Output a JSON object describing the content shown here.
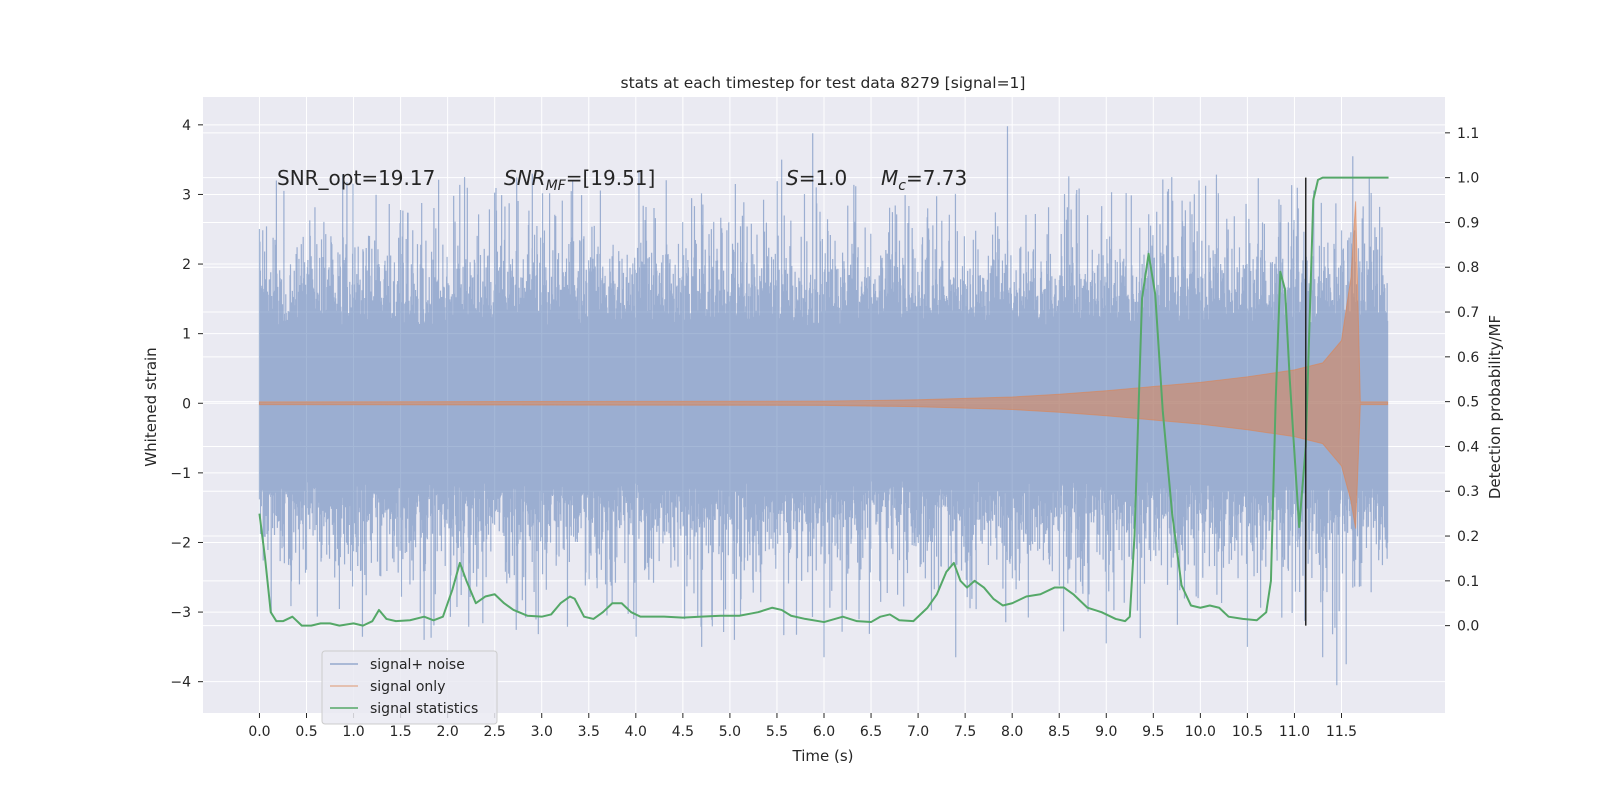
{
  "chart_data": {
    "type": "line",
    "title": "stats at each timestep for test data 8279 [signal=1]",
    "xlabel": "Time (s)",
    "ylabel_left": "Whitened strain",
    "ylabel_right": "Detection probability/MF",
    "xlim": [
      -0.6,
      12.6
    ],
    "ylim_left": [
      -4.45,
      4.4
    ],
    "ylim_right": [
      -0.195,
      1.18
    ],
    "xticks": [
      "0.0",
      "0.5",
      "1.0",
      "1.5",
      "2.0",
      "2.5",
      "3.0",
      "3.5",
      "4.0",
      "4.5",
      "5.0",
      "5.5",
      "6.0",
      "6.5",
      "7.0",
      "7.5",
      "8.0",
      "8.5",
      "9.0",
      "9.5",
      "10.0",
      "10.5",
      "11.0",
      "11.5"
    ],
    "yticks_left": [
      "4",
      "3",
      "2",
      "1",
      "0",
      "−1",
      "−2",
      "−3",
      "−4"
    ],
    "yticks_right": [
      "1.1",
      "1.0",
      "0.9",
      "0.8",
      "0.7",
      "0.6",
      "0.5",
      "0.4",
      "0.3",
      "0.2",
      "0.1",
      "0.0"
    ],
    "grid": true,
    "legend_position": "lower-left",
    "annotations": {
      "snr_opt": "SNR_opt=19.17",
      "snr_mf_name": "SNR",
      "snr_mf_sub": "MF",
      "snr_mf_value": "=[19.51]",
      "s_name": "S",
      "s_value": "=1.0",
      "mc_name": "M",
      "mc_sub": "c",
      "mc_value": "=7.73"
    },
    "vline_x": 11.12,
    "series": [
      {
        "name": "signal+ noise",
        "color": "#4c72b0",
        "x_range": [
          0.0,
          11.99
        ],
        "typical_envelope": [
          -1.9,
          1.9
        ],
        "extreme_range": [
          -4.05,
          3.98
        ]
      },
      {
        "name": "signal only",
        "color": "#dd8452",
        "envelope": {
          "x": [
            0.0,
            6.0,
            7.0,
            8.0,
            8.5,
            9.0,
            9.5,
            10.0,
            10.5,
            11.0,
            11.3,
            11.5,
            11.6,
            11.65,
            11.7,
            11.99
          ],
          "upper": [
            0.02,
            0.03,
            0.05,
            0.09,
            0.13,
            0.18,
            0.24,
            0.3,
            0.38,
            0.48,
            0.58,
            0.9,
            1.8,
            2.9,
            0.02,
            0.02
          ],
          "lower": [
            -0.02,
            -0.03,
            -0.05,
            -0.09,
            -0.13,
            -0.18,
            -0.24,
            -0.3,
            -0.38,
            -0.48,
            -0.58,
            -0.9,
            -1.4,
            -1.8,
            -0.02,
            -0.02
          ]
        }
      },
      {
        "name": "signal statistics",
        "color": "#55a868",
        "x": [
          0.0,
          0.06,
          0.12,
          0.18,
          0.25,
          0.35,
          0.45,
          0.55,
          0.65,
          0.75,
          0.85,
          1.0,
          1.1,
          1.2,
          1.27,
          1.35,
          1.45,
          1.6,
          1.75,
          1.85,
          1.95,
          2.05,
          2.13,
          2.2,
          2.3,
          2.4,
          2.5,
          2.6,
          2.7,
          2.85,
          3.0,
          3.1,
          3.2,
          3.3,
          3.35,
          3.45,
          3.55,
          3.65,
          3.75,
          3.85,
          3.95,
          4.05,
          4.15,
          4.3,
          4.5,
          4.7,
          4.9,
          5.1,
          5.3,
          5.45,
          5.55,
          5.65,
          5.8,
          6.0,
          6.2,
          6.35,
          6.5,
          6.6,
          6.7,
          6.8,
          6.95,
          7.1,
          7.2,
          7.3,
          7.38,
          7.45,
          7.52,
          7.6,
          7.7,
          7.8,
          7.9,
          8.0,
          8.15,
          8.3,
          8.45,
          8.55,
          8.65,
          8.8,
          8.95,
          9.1,
          9.2,
          9.25,
          9.3,
          9.38,
          9.45,
          9.52,
          9.6,
          9.7,
          9.8,
          9.9,
          10.0,
          10.1,
          10.2,
          10.3,
          10.45,
          10.6,
          10.7,
          10.75,
          10.8,
          10.85,
          10.9,
          10.95,
          11.05,
          11.12,
          11.2,
          11.25,
          11.3,
          11.4,
          11.5,
          11.6,
          11.7,
          11.8,
          11.9,
          12.0
        ],
        "y": [
          0.25,
          0.15,
          0.03,
          0.01,
          0.01,
          0.02,
          0.0,
          0.0,
          0.005,
          0.005,
          0.0,
          0.005,
          0.0,
          0.01,
          0.035,
          0.015,
          0.01,
          0.012,
          0.02,
          0.012,
          0.02,
          0.08,
          0.14,
          0.1,
          0.05,
          0.065,
          0.07,
          0.05,
          0.035,
          0.022,
          0.02,
          0.025,
          0.05,
          0.065,
          0.06,
          0.02,
          0.015,
          0.03,
          0.05,
          0.05,
          0.03,
          0.02,
          0.02,
          0.02,
          0.018,
          0.02,
          0.022,
          0.022,
          0.03,
          0.04,
          0.035,
          0.022,
          0.015,
          0.008,
          0.02,
          0.01,
          0.008,
          0.02,
          0.025,
          0.012,
          0.01,
          0.04,
          0.07,
          0.12,
          0.14,
          0.1,
          0.085,
          0.1,
          0.085,
          0.06,
          0.045,
          0.05,
          0.065,
          0.07,
          0.085,
          0.085,
          0.07,
          0.04,
          0.03,
          0.015,
          0.01,
          0.02,
          0.2,
          0.73,
          0.83,
          0.74,
          0.48,
          0.25,
          0.09,
          0.045,
          0.04,
          0.045,
          0.04,
          0.02,
          0.015,
          0.012,
          0.03,
          0.1,
          0.5,
          0.79,
          0.75,
          0.55,
          0.22,
          0.4,
          0.95,
          0.995,
          1.0,
          1.0,
          1.0,
          1.0,
          1.0,
          1.0,
          1.0,
          1.0
        ]
      }
    ]
  }
}
